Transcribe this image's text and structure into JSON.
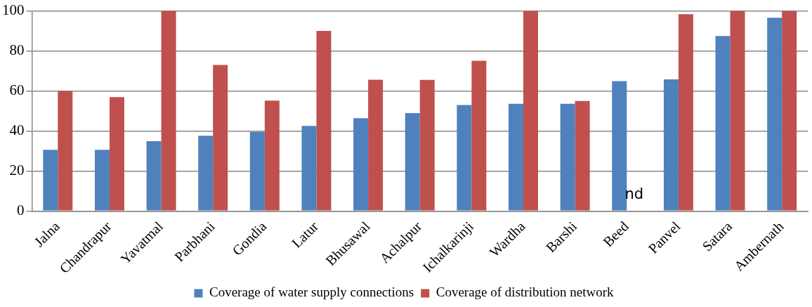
{
  "chart_data": {
    "type": "bar",
    "categories": [
      "Jalna",
      "Chandrapur",
      "Yavatmal",
      "Parbhani",
      "Gondia",
      "Latur",
      "Bhusawal",
      "Achalpur",
      "Ichalkarinji",
      "Wardha",
      "Barshi",
      "Beed",
      "Panvel",
      "Satara",
      "Ambernath"
    ],
    "series": [
      {
        "name": "Coverage of water supply connections",
        "color": "#4f81bd",
        "values": [
          30.6,
          30.6,
          34.9,
          37.6,
          39.5,
          42.5,
          46.4,
          48.9,
          53.0,
          53.6,
          53.6,
          64.9,
          65.8,
          87.5,
          96.6
        ]
      },
      {
        "name": "Coverage of distribution network",
        "color": "#c0504d",
        "values": [
          60.0,
          56.9,
          100,
          73,
          55.2,
          90,
          65.6,
          65.5,
          75.1,
          100,
          55.0,
          null,
          98.4,
          100,
          100
        ]
      }
    ],
    "ylim": [
      0,
      100
    ],
    "yticks": [
      0,
      20,
      40,
      60,
      80,
      100
    ],
    "grid": "y",
    "legend": "bottom",
    "annotations": [
      {
        "text": "nd",
        "x": "Beed",
        "y": 0
      }
    ]
  }
}
